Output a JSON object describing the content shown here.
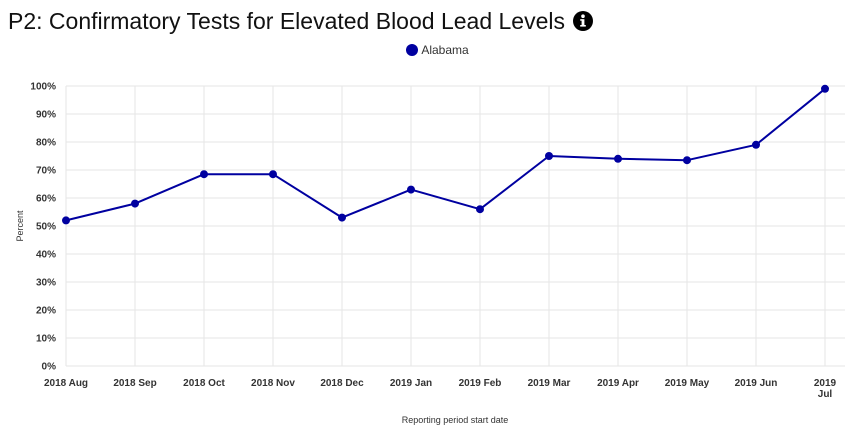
{
  "header": {
    "title": "P2: Confirmatory Tests for Elevated Blood Lead Levels",
    "info_icon": "info-circle-icon"
  },
  "chart_data": {
    "type": "line",
    "title": "P2: Confirmatory Tests for Elevated Blood Lead Levels",
    "xlabel": "Reporting period start date",
    "ylabel": "Percent",
    "ylim": [
      0,
      100
    ],
    "yticks": [
      "0%",
      "10%",
      "20%",
      "30%",
      "40%",
      "50%",
      "60%",
      "70%",
      "80%",
      "90%",
      "100%"
    ],
    "grid": true,
    "legend_position": "top-center",
    "categories": [
      [
        "2018 Aug"
      ],
      [
        "2018 Sep"
      ],
      [
        "2018 Oct"
      ],
      [
        "2018 Nov"
      ],
      [
        "2018 Dec"
      ],
      [
        "2019 Jan"
      ],
      [
        "2019 Feb"
      ],
      [
        "2019 Mar"
      ],
      [
        "2019 Apr"
      ],
      [
        "2019 May"
      ],
      [
        "2019 Jun"
      ],
      [
        "2019",
        "Jul"
      ]
    ],
    "series": [
      {
        "name": "Alabama",
        "color": "#0000a0",
        "values": [
          52,
          58,
          68.5,
          68.5,
          53,
          63,
          56,
          75,
          74,
          73.5,
          79,
          99
        ]
      }
    ]
  }
}
